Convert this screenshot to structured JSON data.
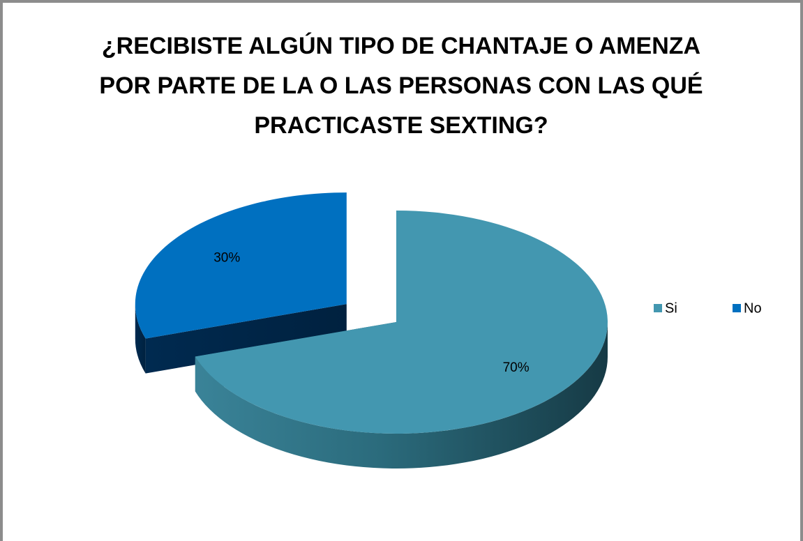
{
  "chart_data": {
    "type": "pie",
    "title": "¿RECIBISTE ALGÚN TIPO DE CHANTAJE O AMENZA POR PARTE DE LA O LAS PERSONAS CON LAS QUÉ PRACTICASTE SEXTING?",
    "categories": [
      "Si",
      "No"
    ],
    "values": [
      70,
      30
    ],
    "value_labels": [
      "70%",
      "30%"
    ],
    "colors": [
      "#4397b0",
      "#0070c0"
    ],
    "legend": "right"
  }
}
